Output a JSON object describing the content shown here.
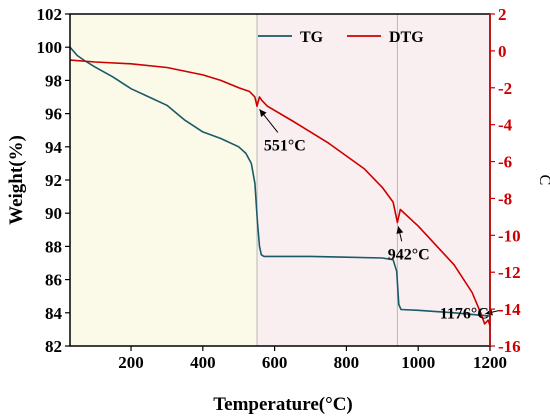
{
  "chart_data": {
    "type": "line",
    "xlabel": "Temperature(°C)",
    "ylabel": "Weight(%)",
    "y2label": "C",
    "xlim": [
      30,
      1200
    ],
    "ylim": [
      82,
      102
    ],
    "y2lim": [
      -16,
      2
    ],
    "xticks": [
      200,
      400,
      600,
      800,
      1000,
      1200
    ],
    "xtick_labels": [
      "200",
      "400",
      "600",
      "800",
      "1000",
      "1200"
    ],
    "yticks": [
      82,
      84,
      86,
      88,
      90,
      92,
      94,
      96,
      98,
      100,
      102
    ],
    "ytick_labels": [
      "82",
      "84",
      "86",
      "88",
      "90",
      "92",
      "94",
      "96",
      "98",
      "100",
      "102"
    ],
    "y2ticks": [
      -16,
      -14,
      -12,
      -10,
      -8,
      -6,
      -4,
      -2,
      0,
      2
    ],
    "y2tick_labels": [
      "-16",
      "-14",
      "-12",
      "-10",
      "-8",
      "-6",
      "-4",
      "-2",
      "0",
      "2"
    ],
    "legend_position": "top-center",
    "grid": false,
    "shaded_regions": [
      {
        "from": 30,
        "to": 551,
        "color": "#fbf9e8"
      },
      {
        "from": 551,
        "to": 942,
        "color": "#f9eef0"
      },
      {
        "from": 942,
        "to": 1200,
        "color": "#f9eef0"
      }
    ],
    "vlines": [
      551,
      942
    ],
    "series": [
      {
        "name": "TG",
        "axis": "left",
        "color": "#1a5a68",
        "x": [
          30,
          50,
          70,
          100,
          150,
          200,
          250,
          300,
          350,
          400,
          450,
          500,
          520,
          535,
          545,
          552,
          558,
          563,
          570,
          600,
          700,
          800,
          900,
          930,
          940,
          946,
          952,
          1000,
          1100,
          1200
        ],
        "y": [
          100.0,
          99.5,
          99.2,
          98.8,
          98.2,
          97.5,
          97.0,
          96.5,
          95.6,
          94.9,
          94.5,
          94.0,
          93.6,
          93.0,
          91.8,
          89.5,
          88.0,
          87.5,
          87.4,
          87.4,
          87.4,
          87.35,
          87.3,
          87.2,
          86.5,
          84.5,
          84.2,
          84.15,
          84.0,
          83.8
        ]
      },
      {
        "name": "DTG",
        "axis": "right",
        "color": "#cc0000",
        "x": [
          30,
          100,
          200,
          300,
          400,
          450,
          500,
          530,
          545,
          551,
          558,
          565,
          580,
          650,
          750,
          850,
          900,
          930,
          942,
          950,
          1000,
          1100,
          1150,
          1176,
          1185,
          1195,
          1200
        ],
        "y": [
          -0.5,
          -0.6,
          -0.7,
          -0.9,
          -1.3,
          -1.6,
          -2.0,
          -2.2,
          -2.5,
          -3.0,
          -2.5,
          -2.7,
          -3.0,
          -3.8,
          -5.0,
          -6.4,
          -7.4,
          -8.2,
          -9.3,
          -8.6,
          -9.5,
          -11.6,
          -13.1,
          -14.3,
          -14.8,
          -14.6,
          -14.9
        ]
      }
    ],
    "annotations": [
      {
        "text": "551°C",
        "target_x": 551,
        "target_axis": "right",
        "target_y": -3.0,
        "label_x": 570,
        "label_y": -5.4
      },
      {
        "text": "942°C",
        "target_x": 942,
        "target_axis": "right",
        "target_y": -9.3,
        "label_x": 915,
        "label_y": -11.3
      },
      {
        "text": "1176°C",
        "target_x": 1176,
        "target_axis": "right",
        "target_y": -14.3,
        "label_x": 1060,
        "label_y": -14.5
      }
    ]
  }
}
